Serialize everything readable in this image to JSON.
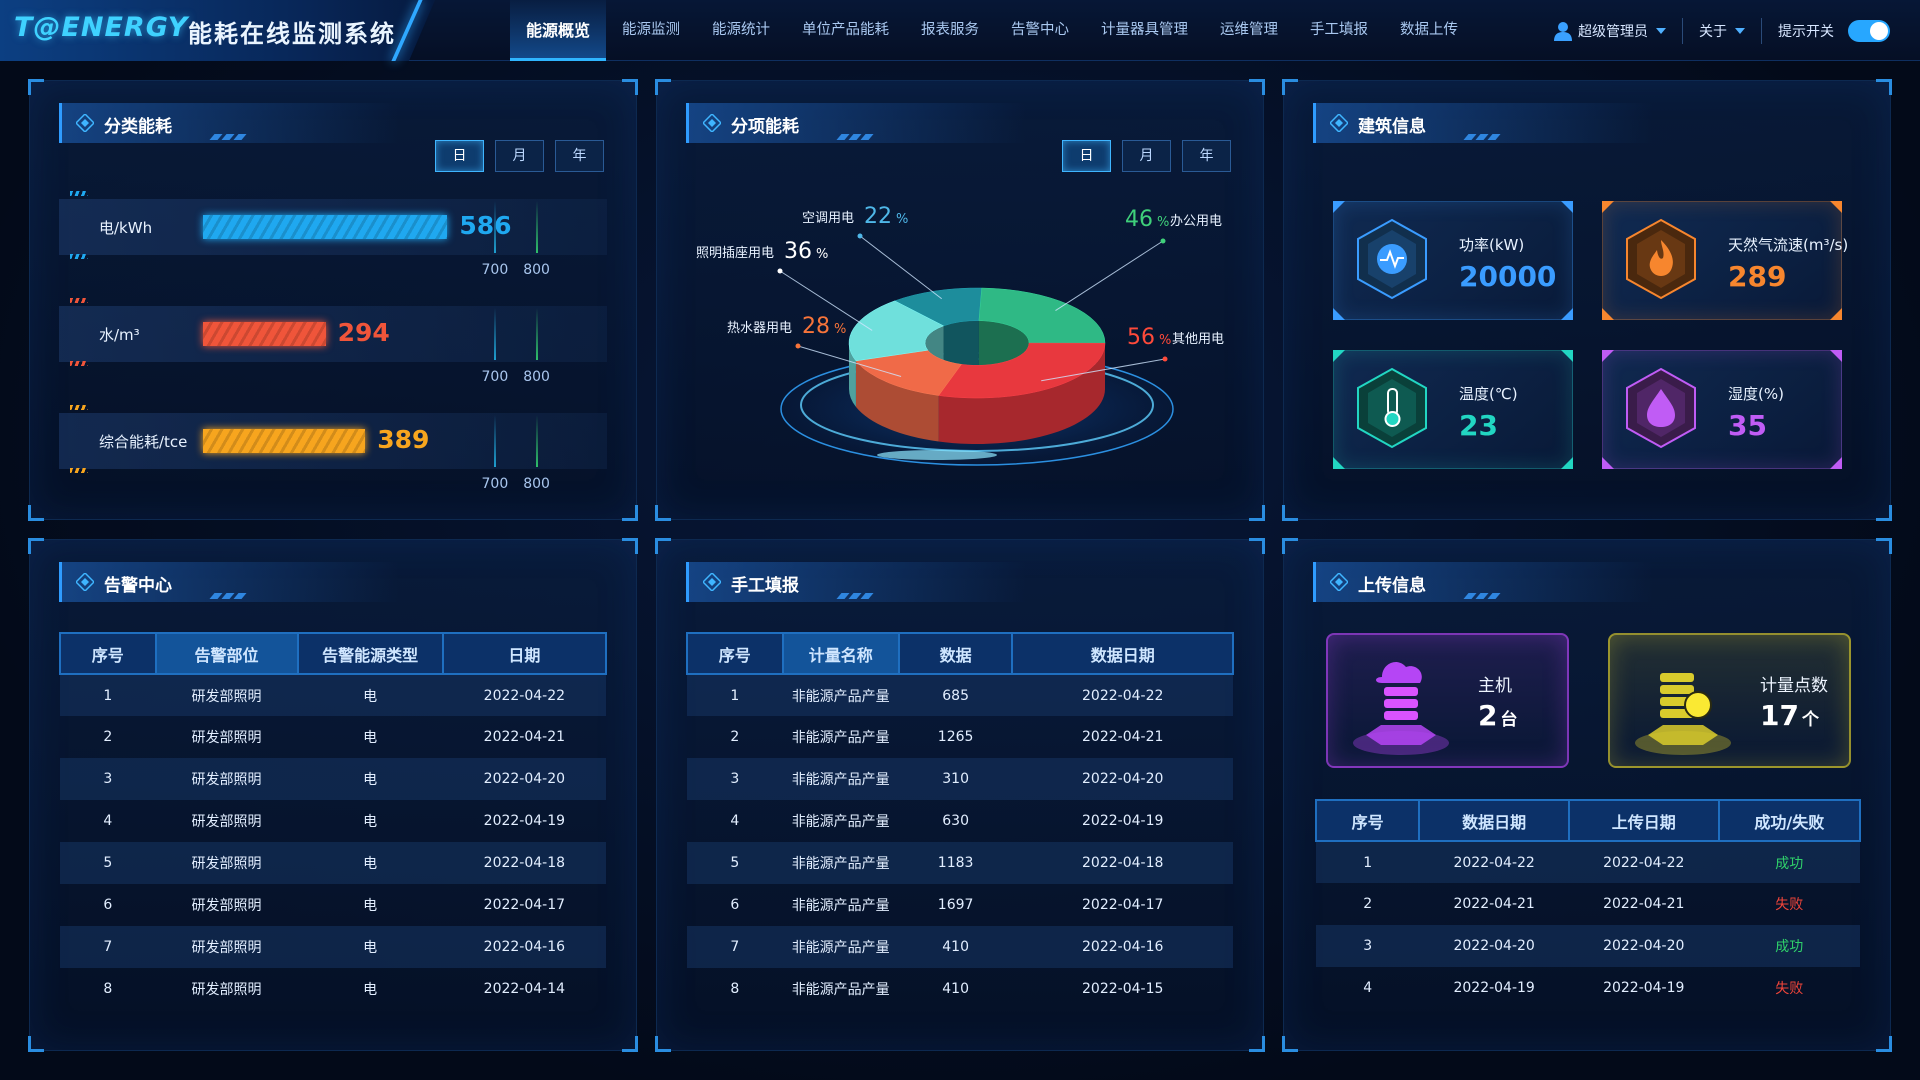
{
  "header": {
    "logo": "T@ENERGY",
    "title": "能耗在线监测系统",
    "nav": [
      "能源概览",
      "能源监测",
      "能源统计",
      "单位产品能耗",
      "报表服务",
      "告警中心",
      "计量器具管理",
      "运维管理",
      "手工填报",
      "数据上传"
    ],
    "active_nav": 0,
    "user": "超级管理员",
    "about": "关于",
    "toggle_label": "提示开关",
    "toggle_on": true
  },
  "category_energy": {
    "title": "分类能耗",
    "periods": [
      "日",
      "月",
      "年"
    ],
    "active_period": 0,
    "chart_data": {
      "type": "bar",
      "orientation": "horizontal",
      "categories": [
        "电/kWh",
        "水/m³",
        "综合能耗/tce"
      ],
      "values": [
        586,
        294,
        389
      ],
      "colors": [
        "#1fa8f0",
        "#f0553a",
        "#f7a51e"
      ],
      "xlim": [
        0,
        1000
      ],
      "xticks": [
        700,
        800
      ]
    }
  },
  "energy_breakdown": {
    "title": "分项能耗",
    "periods": [
      "日",
      "月",
      "年"
    ],
    "active_period": 0,
    "chart_data": {
      "type": "pie",
      "categories": [
        "空调用电",
        "办公用电",
        "其他用电",
        "热水器用电",
        "照明插座用电"
      ],
      "values": [
        22,
        46,
        56,
        28,
        36
      ],
      "unit": "%",
      "colors": [
        "#1d8d9c",
        "#2fb985",
        "#e8383e",
        "#f06a48",
        "#6fe0dc"
      ],
      "label_colors": [
        "#4fb7e8",
        "#3fd07a",
        "#ff4a3a",
        "#f7743a",
        "#ffffff"
      ]
    }
  },
  "building_info": {
    "title": "建筑信息",
    "cards": [
      {
        "label": "功率(kW)",
        "value": 20000,
        "color": "#3a9cff"
      },
      {
        "label": "天然气流速(m³/s)",
        "value": 289,
        "color": "#f7862e"
      },
      {
        "label": "温度(℃)",
        "value": 23,
        "color": "#22d6c2"
      },
      {
        "label": "湿度(%)",
        "value": 35,
        "color": "#c05cf5"
      }
    ]
  },
  "alarm_center": {
    "title": "告警中心",
    "columns": [
      "序号",
      "告警部位",
      "告警能源类型",
      "日期"
    ],
    "highlight_column": 1,
    "rows": [
      [
        1,
        "研发部照明",
        "电",
        "2022-04-22"
      ],
      [
        2,
        "研发部照明",
        "电",
        "2022-04-21"
      ],
      [
        3,
        "研发部照明",
        "电",
        "2022-04-20"
      ],
      [
        4,
        "研发部照明",
        "电",
        "2022-04-19"
      ],
      [
        5,
        "研发部照明",
        "电",
        "2022-04-18"
      ],
      [
        6,
        "研发部照明",
        "电",
        "2022-04-17"
      ],
      [
        7,
        "研发部照明",
        "电",
        "2022-04-16"
      ],
      [
        8,
        "研发部照明",
        "电",
        "2022-04-14"
      ]
    ]
  },
  "manual_entry": {
    "title": "手工填报",
    "columns": [
      "序号",
      "计量名称",
      "数据",
      "数据日期"
    ],
    "highlight_column": 1,
    "rows": [
      [
        1,
        "非能源产品产量",
        685,
        "2022-04-22"
      ],
      [
        2,
        "非能源产品产量",
        1265,
        "2022-04-21"
      ],
      [
        3,
        "非能源产品产量",
        310,
        "2022-04-20"
      ],
      [
        4,
        "非能源产品产量",
        630,
        "2022-04-19"
      ],
      [
        5,
        "非能源产品产量",
        1183,
        "2022-04-18"
      ],
      [
        6,
        "非能源产品产量",
        1697,
        "2022-04-17"
      ],
      [
        7,
        "非能源产品产量",
        410,
        "2022-04-16"
      ],
      [
        8,
        "非能源产品产量",
        410,
        "2022-04-15"
      ]
    ]
  },
  "upload_info": {
    "title": "上传信息",
    "cards": [
      {
        "label": "主机",
        "value": 2,
        "unit": "台",
        "color": "#b545f5"
      },
      {
        "label": "计量点数",
        "value": 17,
        "unit": "个",
        "color": "#d9cb2c"
      }
    ],
    "columns": [
      "序号",
      "数据日期",
      "上传日期",
      "成功/失败"
    ],
    "rows": [
      [
        1,
        "2022-04-22",
        "2022-04-22",
        "成功"
      ],
      [
        2,
        "2022-04-21",
        "2022-04-21",
        "失败"
      ],
      [
        3,
        "2022-04-20",
        "2022-04-20",
        "成功"
      ],
      [
        4,
        "2022-04-19",
        "2022-04-19",
        "失败"
      ]
    ],
    "status_colors": [
      "#2fd06a",
      "#f0453a",
      "#2fd06a",
      "#f0453a"
    ]
  }
}
